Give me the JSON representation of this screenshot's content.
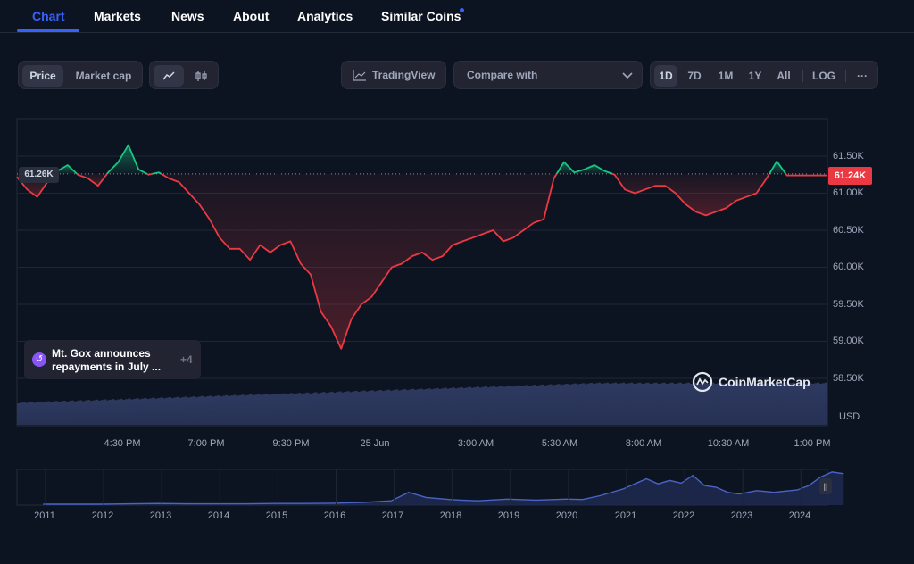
{
  "tabs": [
    {
      "label": "Chart",
      "active": true
    },
    {
      "label": "Markets"
    },
    {
      "label": "News"
    },
    {
      "label": "About"
    },
    {
      "label": "Analytics"
    },
    {
      "label": "Similar Coins",
      "badge": "dot"
    }
  ],
  "toolbar": {
    "mode": [
      "Price",
      "Market cap"
    ],
    "mode_selected": "Price",
    "chart_styles": [
      "line-chart-icon",
      "candlestick-icon"
    ],
    "tradingview_label": "TradingView",
    "compare_label": "Compare with",
    "ranges": [
      "1D",
      "7D",
      "1M",
      "1Y",
      "All"
    ],
    "range_selected": "1D",
    "log_label": "LOG",
    "more_label": "···"
  },
  "event": {
    "text": "Mt. Gox announces repayments in July ...",
    "count": "+4"
  },
  "brand": "CoinMarketCap",
  "colors": {
    "up": "#16c784",
    "down": "#ea3943",
    "accent": "#3861fb",
    "volume": "#2e3960",
    "navigator": "#4a63c8"
  },
  "chart_data": {
    "type": "line",
    "baseline_label": "61.26K",
    "baseline": 61260,
    "current_label": "61.24K",
    "current": 61240,
    "y_ticks": [
      "61.50K",
      "61.00K",
      "60.50K",
      "60.00K",
      "59.50K",
      "59.00K",
      "58.50K"
    ],
    "y_tick_values": [
      61500,
      61000,
      60500,
      60000,
      59500,
      59000,
      58500
    ],
    "x_ticks": [
      "4:30 PM",
      "7:00 PM",
      "9:30 PM",
      "25 Jun",
      "3:00 AM",
      "5:30 AM",
      "8:00 AM",
      "10:30 AM",
      "1:00 PM"
    ],
    "y_unit": "USD",
    "series": [
      {
        "x": [
          0,
          0.3,
          0.6,
          0.9,
          1.2,
          1.5,
          1.8,
          2.1,
          2.4,
          2.7,
          3.0,
          3.3,
          3.6,
          3.9,
          4.2,
          4.5,
          4.8,
          5.1,
          5.4,
          5.7,
          6.0,
          6.3,
          6.6,
          6.9,
          7.2,
          7.5,
          7.8,
          8.1,
          8.4,
          8.7,
          9.0,
          9.3,
          9.6,
          9.9,
          10.2,
          10.5,
          10.8,
          11.1,
          11.4,
          11.7,
          12.0,
          12.3,
          12.6,
          12.9,
          13.2,
          13.5,
          13.8,
          14.1,
          14.4,
          14.7,
          15.0,
          15.3,
          15.6,
          15.9,
          16.2,
          16.5,
          16.8,
          17.1,
          17.4,
          17.7,
          18.0,
          18.3,
          18.6,
          18.9,
          19.2,
          19.5,
          19.8,
          20.1,
          20.4,
          20.7,
          21.0,
          21.3,
          21.6,
          21.9,
          22.2,
          22.5,
          22.8,
          23.1,
          23.4,
          23.7,
          24.0
        ],
        "values": [
          61220,
          61050,
          60950,
          61150,
          61300,
          61380,
          61250,
          61200,
          61100,
          61280,
          61420,
          61650,
          61320,
          61250,
          61280,
          61200,
          61150,
          61000,
          60850,
          60650,
          60400,
          60250,
          60250,
          60100,
          60300,
          60200,
          60300,
          60350,
          60050,
          59900,
          59400,
          59200,
          58900,
          59300,
          59500,
          59600,
          59800,
          60000,
          60050,
          60150,
          60200,
          60100,
          60150,
          60300,
          60350,
          60400,
          60450,
          60500,
          60350,
          60400,
          60500,
          60600,
          60650,
          61200,
          61420,
          61280,
          61320,
          61380,
          61300,
          61250,
          61050,
          61000,
          61050,
          61100,
          61100,
          61000,
          60850,
          60750,
          60700,
          60750,
          60800,
          60900,
          60950,
          61000,
          61200,
          61430,
          61240,
          61240,
          61240,
          61240,
          61240
        ]
      }
    ],
    "navigator": {
      "x_ticks": [
        "2011",
        "2012",
        "2013",
        "2014",
        "2015",
        "2016",
        "2017",
        "2018",
        "2019",
        "2020",
        "2021",
        "2022",
        "2023",
        "2024"
      ]
    }
  }
}
